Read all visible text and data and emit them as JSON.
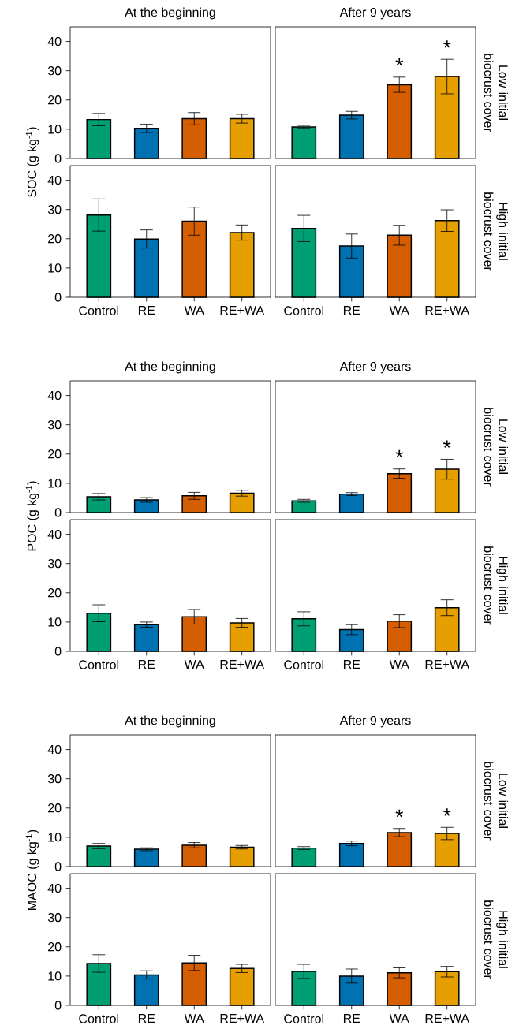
{
  "chart_data": [
    {
      "type": "bar",
      "title": "At the beginning",
      "ylabel": "SOC (g kg$^{-1}$)",
      "categories": [
        "Control",
        "RE",
        "WA",
        "RE+WA"
      ],
      "values": [
        13.3,
        10.3,
        13.6,
        13.6
      ],
      "errors": [
        2.1,
        1.4,
        2.1,
        1.5
      ],
      "colors": [
        "#009e73",
        "#0072b2",
        "#d55e00",
        "#e69f00"
      ],
      "ylim": [
        0,
        45
      ],
      "yticks": [
        0,
        10,
        20,
        30,
        40
      ],
      "tick_labels": "y"
    },
    {
      "type": "bar",
      "title": "After 9 years",
      "y2label": "Low initial biocrust cover",
      "categories": [
        "Control",
        "RE",
        "WA",
        "RE+WA"
      ],
      "values": [
        10.8,
        14.8,
        25.2,
        28.0
      ],
      "errors": [
        0.5,
        1.3,
        2.6,
        5.9
      ],
      "colors": [
        "#009e73",
        "#0072b2",
        "#d55e00",
        "#e69f00"
      ],
      "ylim": [
        0,
        45
      ],
      "tick_labels": false,
      "annotations": [
        {
          "text": "*",
          "x": "WA",
          "y": 25.2
        },
        {
          "text": "*",
          "x": "RE+WA",
          "y": 28.0
        }
      ]
    },
    {
      "type": "bar",
      "categories": [
        "Control",
        "RE",
        "WA",
        "RE+WA"
      ],
      "values": [
        28.1,
        19.9,
        26.0,
        22.1
      ],
      "errors": [
        5.5,
        3.1,
        4.8,
        2.6
      ],
      "colors": [
        "#009e73",
        "#0072b2",
        "#d55e00",
        "#e69f00"
      ],
      "ylim": [
        0,
        45
      ],
      "yticks": [
        0,
        10,
        20,
        30,
        40
      ]
    },
    {
      "type": "bar",
      "y2label": "High initial biocrust cover",
      "categories": [
        "Control",
        "RE",
        "WA",
        "RE+WA"
      ],
      "values": [
        23.5,
        17.5,
        21.2,
        26.2
      ],
      "errors": [
        4.5,
        4.1,
        3.4,
        3.7
      ],
      "colors": [
        "#009e73",
        "#0072b2",
        "#d55e00",
        "#e69f00"
      ],
      "ylim": [
        0,
        45
      ],
      "tick_labels": "x"
    },
    {
      "type": "bar",
      "title": "At the beginning",
      "ylabel": "POC (g kg$^{-1}$)",
      "categories": [
        "Control",
        "RE",
        "WA",
        "RE+WA"
      ],
      "values": [
        5.4,
        4.3,
        5.7,
        6.6
      ],
      "errors": [
        1.1,
        0.8,
        1.2,
        1.0
      ],
      "colors": [
        "#009e73",
        "#0072b2",
        "#d55e00",
        "#e69f00"
      ],
      "ylim": [
        0,
        45
      ],
      "yticks": [
        0,
        10,
        20,
        30,
        40
      ],
      "tick_labels": "y"
    },
    {
      "type": "bar",
      "title": "After 9 years",
      "y2label": "Low initial biocrust cover",
      "categories": [
        "Control",
        "RE",
        "WA",
        "RE+WA"
      ],
      "values": [
        4.0,
        6.3,
        13.3,
        14.8
      ],
      "errors": [
        0.5,
        0.5,
        1.6,
        3.4
      ],
      "colors": [
        "#009e73",
        "#0072b2",
        "#d55e00",
        "#e69f00"
      ],
      "ylim": [
        0,
        45
      ],
      "tick_labels": false,
      "annotations": [
        {
          "text": "*",
          "x": "WA",
          "y": 13.3
        },
        {
          "text": "*",
          "x": "RE+WA",
          "y": 14.8
        }
      ]
    },
    {
      "type": "bar",
      "categories": [
        "Control",
        "RE",
        "WA",
        "RE+WA"
      ],
      "values": [
        13.0,
        9.1,
        11.8,
        9.7
      ],
      "errors": [
        2.9,
        0.9,
        2.5,
        1.5
      ],
      "colors": [
        "#009e73",
        "#0072b2",
        "#d55e00",
        "#e69f00"
      ],
      "ylim": [
        0,
        45
      ],
      "yticks": [
        0,
        10,
        20,
        30,
        40
      ]
    },
    {
      "type": "bar",
      "y2label": "High initial biocrust cover",
      "categories": [
        "Control",
        "RE",
        "WA",
        "RE+WA"
      ],
      "values": [
        11.1,
        7.4,
        10.3,
        14.9
      ],
      "errors": [
        2.4,
        1.7,
        2.2,
        2.7
      ],
      "colors": [
        "#009e73",
        "#0072b2",
        "#d55e00",
        "#e69f00"
      ],
      "ylim": [
        0,
        45
      ],
      "tick_labels": "x"
    },
    {
      "type": "bar",
      "title": "At the beginning",
      "ylabel": "MAOC (g kg$^{-1}$)",
      "categories": [
        "Control",
        "RE",
        "WA",
        "RE+WA"
      ],
      "values": [
        7.0,
        5.9,
        7.3,
        6.6
      ],
      "errors": [
        0.9,
        0.5,
        0.9,
        0.6
      ],
      "colors": [
        "#009e73",
        "#0072b2",
        "#d55e00",
        "#e69f00"
      ],
      "ylim": [
        0,
        45
      ],
      "yticks": [
        0,
        10,
        20,
        30,
        40
      ],
      "tick_labels": "y"
    },
    {
      "type": "bar",
      "title": "After 9 years",
      "y2label": "Low initial biocrust cover",
      "categories": [
        "Control",
        "RE",
        "WA",
        "RE+WA"
      ],
      "values": [
        6.3,
        7.9,
        11.6,
        11.3
      ],
      "errors": [
        0.5,
        0.8,
        1.4,
        2.1
      ],
      "colors": [
        "#009e73",
        "#0072b2",
        "#d55e00",
        "#e69f00"
      ],
      "ylim": [
        0,
        45
      ],
      "tick_labels": false,
      "annotations": [
        {
          "text": "*",
          "x": "WA",
          "y": 11.6
        },
        {
          "text": "*",
          "x": "RE+WA",
          "y": 11.3
        }
      ]
    },
    {
      "type": "bar",
      "categories": [
        "Control",
        "RE",
        "WA",
        "RE+WA"
      ],
      "values": [
        14.3,
        10.4,
        14.5,
        12.6
      ],
      "errors": [
        3.0,
        1.4,
        2.6,
        1.4
      ],
      "colors": [
        "#009e73",
        "#0072b2",
        "#d55e00",
        "#e69f00"
      ],
      "ylim": [
        0,
        45
      ],
      "yticks": [
        0,
        10,
        20,
        30,
        40
      ]
    },
    {
      "type": "bar",
      "y2label": "High initial biocrust cover",
      "categories": [
        "Control",
        "RE",
        "WA",
        "RE+WA"
      ],
      "values": [
        11.6,
        10.0,
        11.1,
        11.5
      ],
      "errors": [
        2.4,
        2.4,
        1.7,
        1.8
      ],
      "colors": [
        "#009e73",
        "#0072b2",
        "#d55e00",
        "#e69f00"
      ],
      "ylim": [
        0,
        45
      ],
      "tick_labels": "x"
    }
  ]
}
